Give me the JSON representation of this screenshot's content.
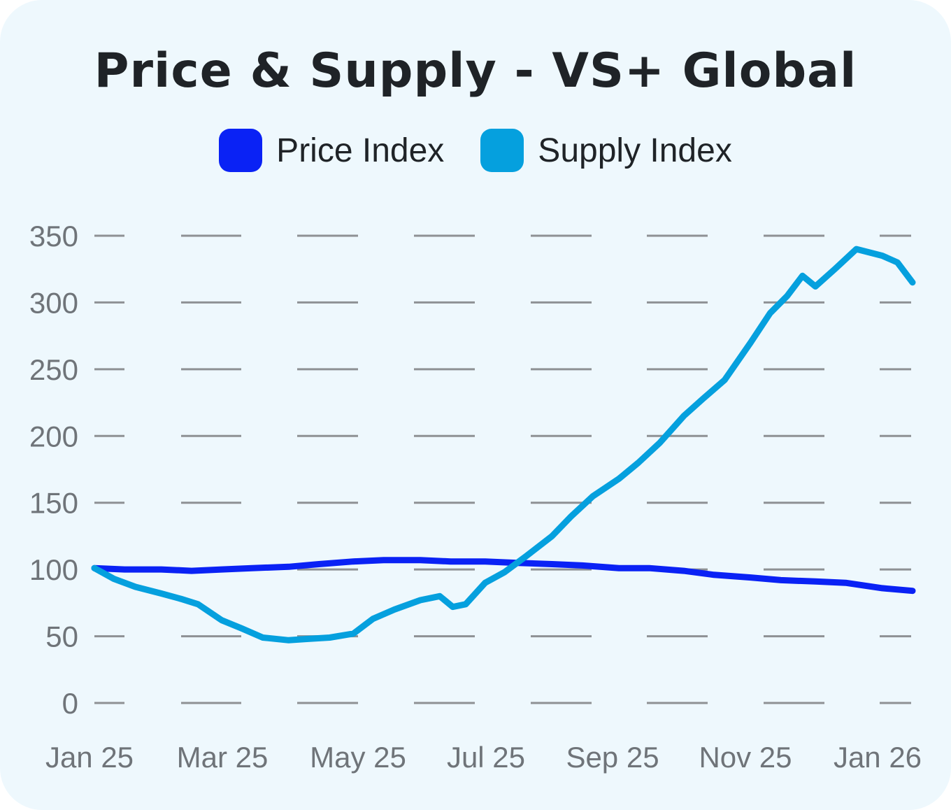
{
  "chart_data": {
    "type": "line",
    "title": "Price & Supply - VS+ Global",
    "legend_position": "top",
    "grid": true,
    "ylim": [
      0,
      350
    ],
    "yticks": [
      "0",
      "50",
      "100",
      "150",
      "200",
      "250",
      "300",
      "350"
    ],
    "xticks": [
      "Jan 25",
      "Mar 25",
      "May 25",
      "Jul 25",
      "Sep 25",
      "Nov 25",
      "Jan 26"
    ],
    "xlim": [
      "2025-01-01",
      "2026-01-15"
    ],
    "series": [
      {
        "name": "Price Index",
        "color": "#0a22f5",
        "points": [
          [
            "2025-01-01",
            101
          ],
          [
            "2025-01-15",
            100
          ],
          [
            "2025-02-01",
            100
          ],
          [
            "2025-02-15",
            99
          ],
          [
            "2025-03-01",
            100
          ],
          [
            "2025-03-15",
            101
          ],
          [
            "2025-04-01",
            102
          ],
          [
            "2025-04-15",
            104
          ],
          [
            "2025-05-01",
            106
          ],
          [
            "2025-05-15",
            107
          ],
          [
            "2025-06-01",
            107
          ],
          [
            "2025-06-15",
            106
          ],
          [
            "2025-07-01",
            106
          ],
          [
            "2025-07-15",
            105
          ],
          [
            "2025-08-01",
            104
          ],
          [
            "2025-08-15",
            103
          ],
          [
            "2025-09-01",
            101
          ],
          [
            "2025-09-15",
            101
          ],
          [
            "2025-10-01",
            99
          ],
          [
            "2025-10-15",
            96
          ],
          [
            "2025-11-01",
            94
          ],
          [
            "2025-11-15",
            92
          ],
          [
            "2025-12-01",
            91
          ],
          [
            "2025-12-15",
            90
          ],
          [
            "2026-01-01",
            86
          ],
          [
            "2026-01-15",
            84
          ]
        ]
      },
      {
        "name": "Supply Index",
        "color": "#05a0de",
        "points": [
          [
            "2025-01-01",
            101
          ],
          [
            "2025-01-10",
            93
          ],
          [
            "2025-01-20",
            87
          ],
          [
            "2025-02-01",
            82
          ],
          [
            "2025-02-10",
            78
          ],
          [
            "2025-02-18",
            74
          ],
          [
            "2025-03-01",
            62
          ],
          [
            "2025-03-10",
            56
          ],
          [
            "2025-03-20",
            49
          ],
          [
            "2025-04-01",
            47
          ],
          [
            "2025-04-10",
            48
          ],
          [
            "2025-04-20",
            49
          ],
          [
            "2025-05-01",
            52
          ],
          [
            "2025-05-10",
            63
          ],
          [
            "2025-05-20",
            70
          ],
          [
            "2025-06-01",
            77
          ],
          [
            "2025-06-10",
            80
          ],
          [
            "2025-06-16",
            72
          ],
          [
            "2025-06-22",
            74
          ],
          [
            "2025-07-01",
            90
          ],
          [
            "2025-07-10",
            98
          ],
          [
            "2025-07-20",
            110
          ],
          [
            "2025-08-01",
            125
          ],
          [
            "2025-08-10",
            140
          ],
          [
            "2025-08-20",
            155
          ],
          [
            "2025-09-01",
            168
          ],
          [
            "2025-09-10",
            180
          ],
          [
            "2025-09-20",
            195
          ],
          [
            "2025-10-01",
            215
          ],
          [
            "2025-10-10",
            228
          ],
          [
            "2025-10-20",
            242
          ],
          [
            "2025-11-01",
            270
          ],
          [
            "2025-11-10",
            292
          ],
          [
            "2025-11-18",
            305
          ],
          [
            "2025-11-25",
            320
          ],
          [
            "2025-12-01",
            312
          ],
          [
            "2025-12-10",
            325
          ],
          [
            "2025-12-20",
            340
          ],
          [
            "2026-01-01",
            335
          ],
          [
            "2026-01-08",
            330
          ],
          [
            "2026-01-15",
            315
          ]
        ]
      }
    ]
  }
}
